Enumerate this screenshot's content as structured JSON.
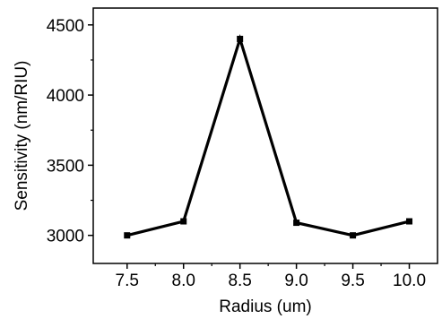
{
  "chart_data": {
    "type": "line",
    "title": "",
    "xlabel": "Radius (um)",
    "ylabel": "Sensitivity (nm/RIU)",
    "x": [
      7.5,
      8.0,
      8.5,
      9.0,
      9.5,
      10.0
    ],
    "x_tick_labels": [
      "7.5",
      "8.0",
      "8.5",
      "9.0",
      "9.5",
      "10.0"
    ],
    "y_tick_labels": [
      "3000",
      "3500",
      "4000",
      "4500"
    ],
    "y_ticks": [
      3000,
      3500,
      4000,
      4500
    ],
    "series": [
      {
        "values": [
          3000,
          3100,
          4400,
          3090,
          3000,
          3100
        ],
        "marker": "square",
        "color": "#000000"
      }
    ],
    "xlim": [
      7.2,
      10.25
    ],
    "ylim": [
      2800,
      4620
    ],
    "grid": false,
    "legend": "none"
  }
}
